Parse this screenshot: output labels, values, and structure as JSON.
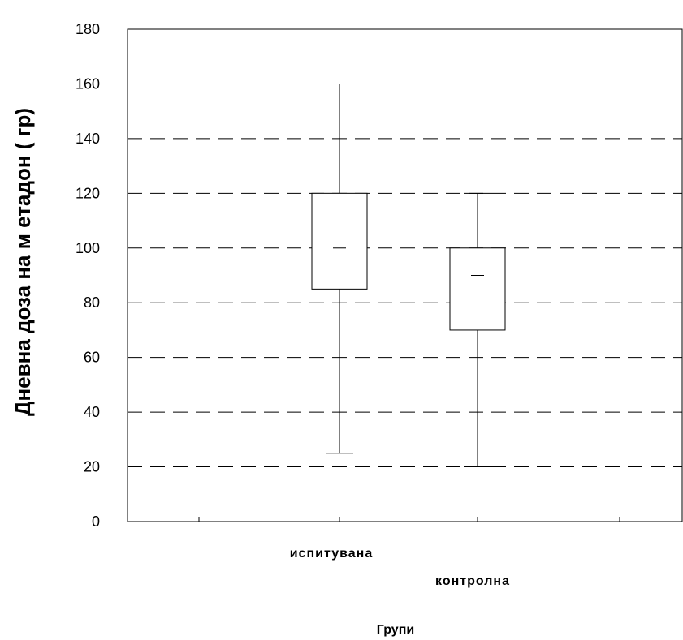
{
  "chart_data": {
    "type": "boxplot",
    "xlabel": "Групи",
    "ylabel": "Дневна доза на м етадон ( гр)",
    "ylim": [
      0,
      180
    ],
    "yticks": [
      0,
      20,
      40,
      60,
      80,
      100,
      120,
      140,
      160,
      180
    ],
    "grid": "horizontal-dashed",
    "categories": [
      "испитувана",
      "контролна"
    ],
    "boxes": [
      {
        "category": "испитувана",
        "min": 25,
        "q1": 85,
        "median": 100,
        "q3": 120,
        "max": 160
      },
      {
        "category": "контролна",
        "min": 20,
        "q1": 70,
        "median": 90,
        "q3": 100,
        "max": 120
      }
    ]
  }
}
